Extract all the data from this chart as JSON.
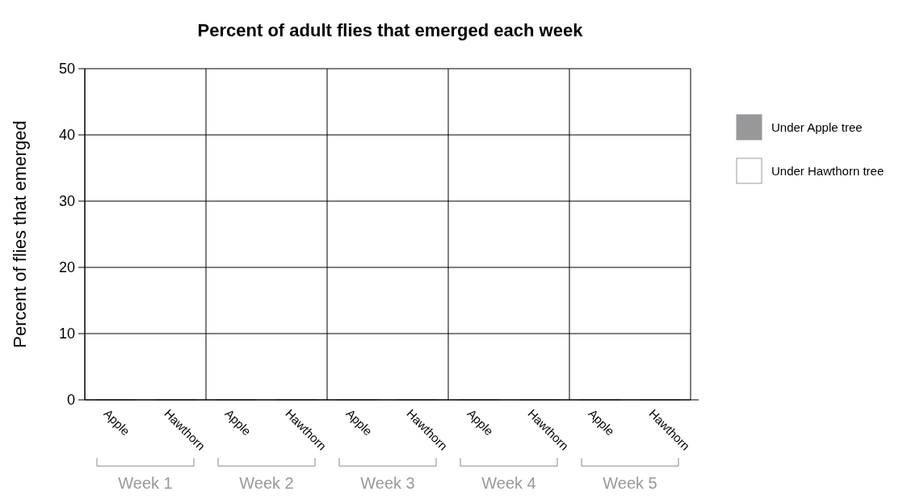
{
  "chart_data": {
    "type": "bar",
    "title": "Percent of adult flies that emerged each week",
    "ylabel": "Percent of flies that emerged",
    "categories": [
      "Apple",
      "Hawthorn",
      "Apple",
      "Hawthorn",
      "Apple",
      "Hawthorn",
      "Apple",
      "Hawthorn",
      "Apple",
      "Hawthorn"
    ],
    "series": [
      {
        "name": "Under Apple tree",
        "color": "#98989b",
        "values": [
          0,
          null,
          0,
          null,
          0,
          null,
          0,
          null,
          0,
          null
        ]
      },
      {
        "name": "Under Hawthorn tree",
        "color": "#ffffff",
        "values": [
          null,
          0,
          null,
          0,
          null,
          0,
          null,
          0,
          null,
          0
        ]
      }
    ],
    "annotations": [
      "Week 1",
      "Week 2",
      "Week 3",
      "Week 4",
      "Week 5"
    ],
    "ylim": [
      0,
      50
    ],
    "yticks": [
      0,
      10,
      20,
      30,
      40,
      50
    ],
    "grid": true,
    "legend": "right"
  }
}
